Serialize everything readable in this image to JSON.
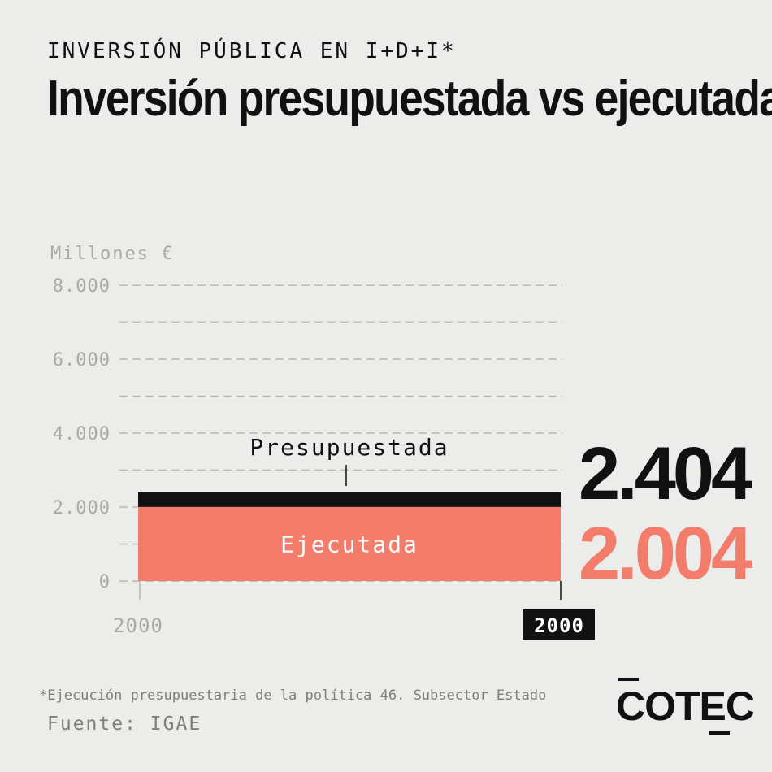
{
  "header": {
    "kicker": "INVERSIÓN PÚBLICA EN I+D+I*",
    "title": "Inversión presupuestada vs ejecutada"
  },
  "chart_data": {
    "type": "bar",
    "unit_label": "Millones €",
    "y_ticks": [
      0,
      2000,
      4000,
      6000,
      8000
    ],
    "y_tick_labels": [
      "0",
      "2.000",
      "4.000",
      "6.000",
      "8.000"
    ],
    "ylim": [
      0,
      8000
    ],
    "grid": true,
    "x_range_labels": {
      "start": "2000",
      "current": "2000"
    },
    "series": [
      {
        "name": "Presupuestada",
        "value": 2404,
        "value_label": "2.404",
        "color": "#111111"
      },
      {
        "name": "Ejecutada",
        "value": 2004,
        "value_label": "2.004",
        "color": "#f47c6b"
      }
    ]
  },
  "footer": {
    "footnote": "*Ejecución presupuestaria de la política 46. Subsector Estado",
    "source": "Fuente: IGAE",
    "logo": "COTEC"
  }
}
